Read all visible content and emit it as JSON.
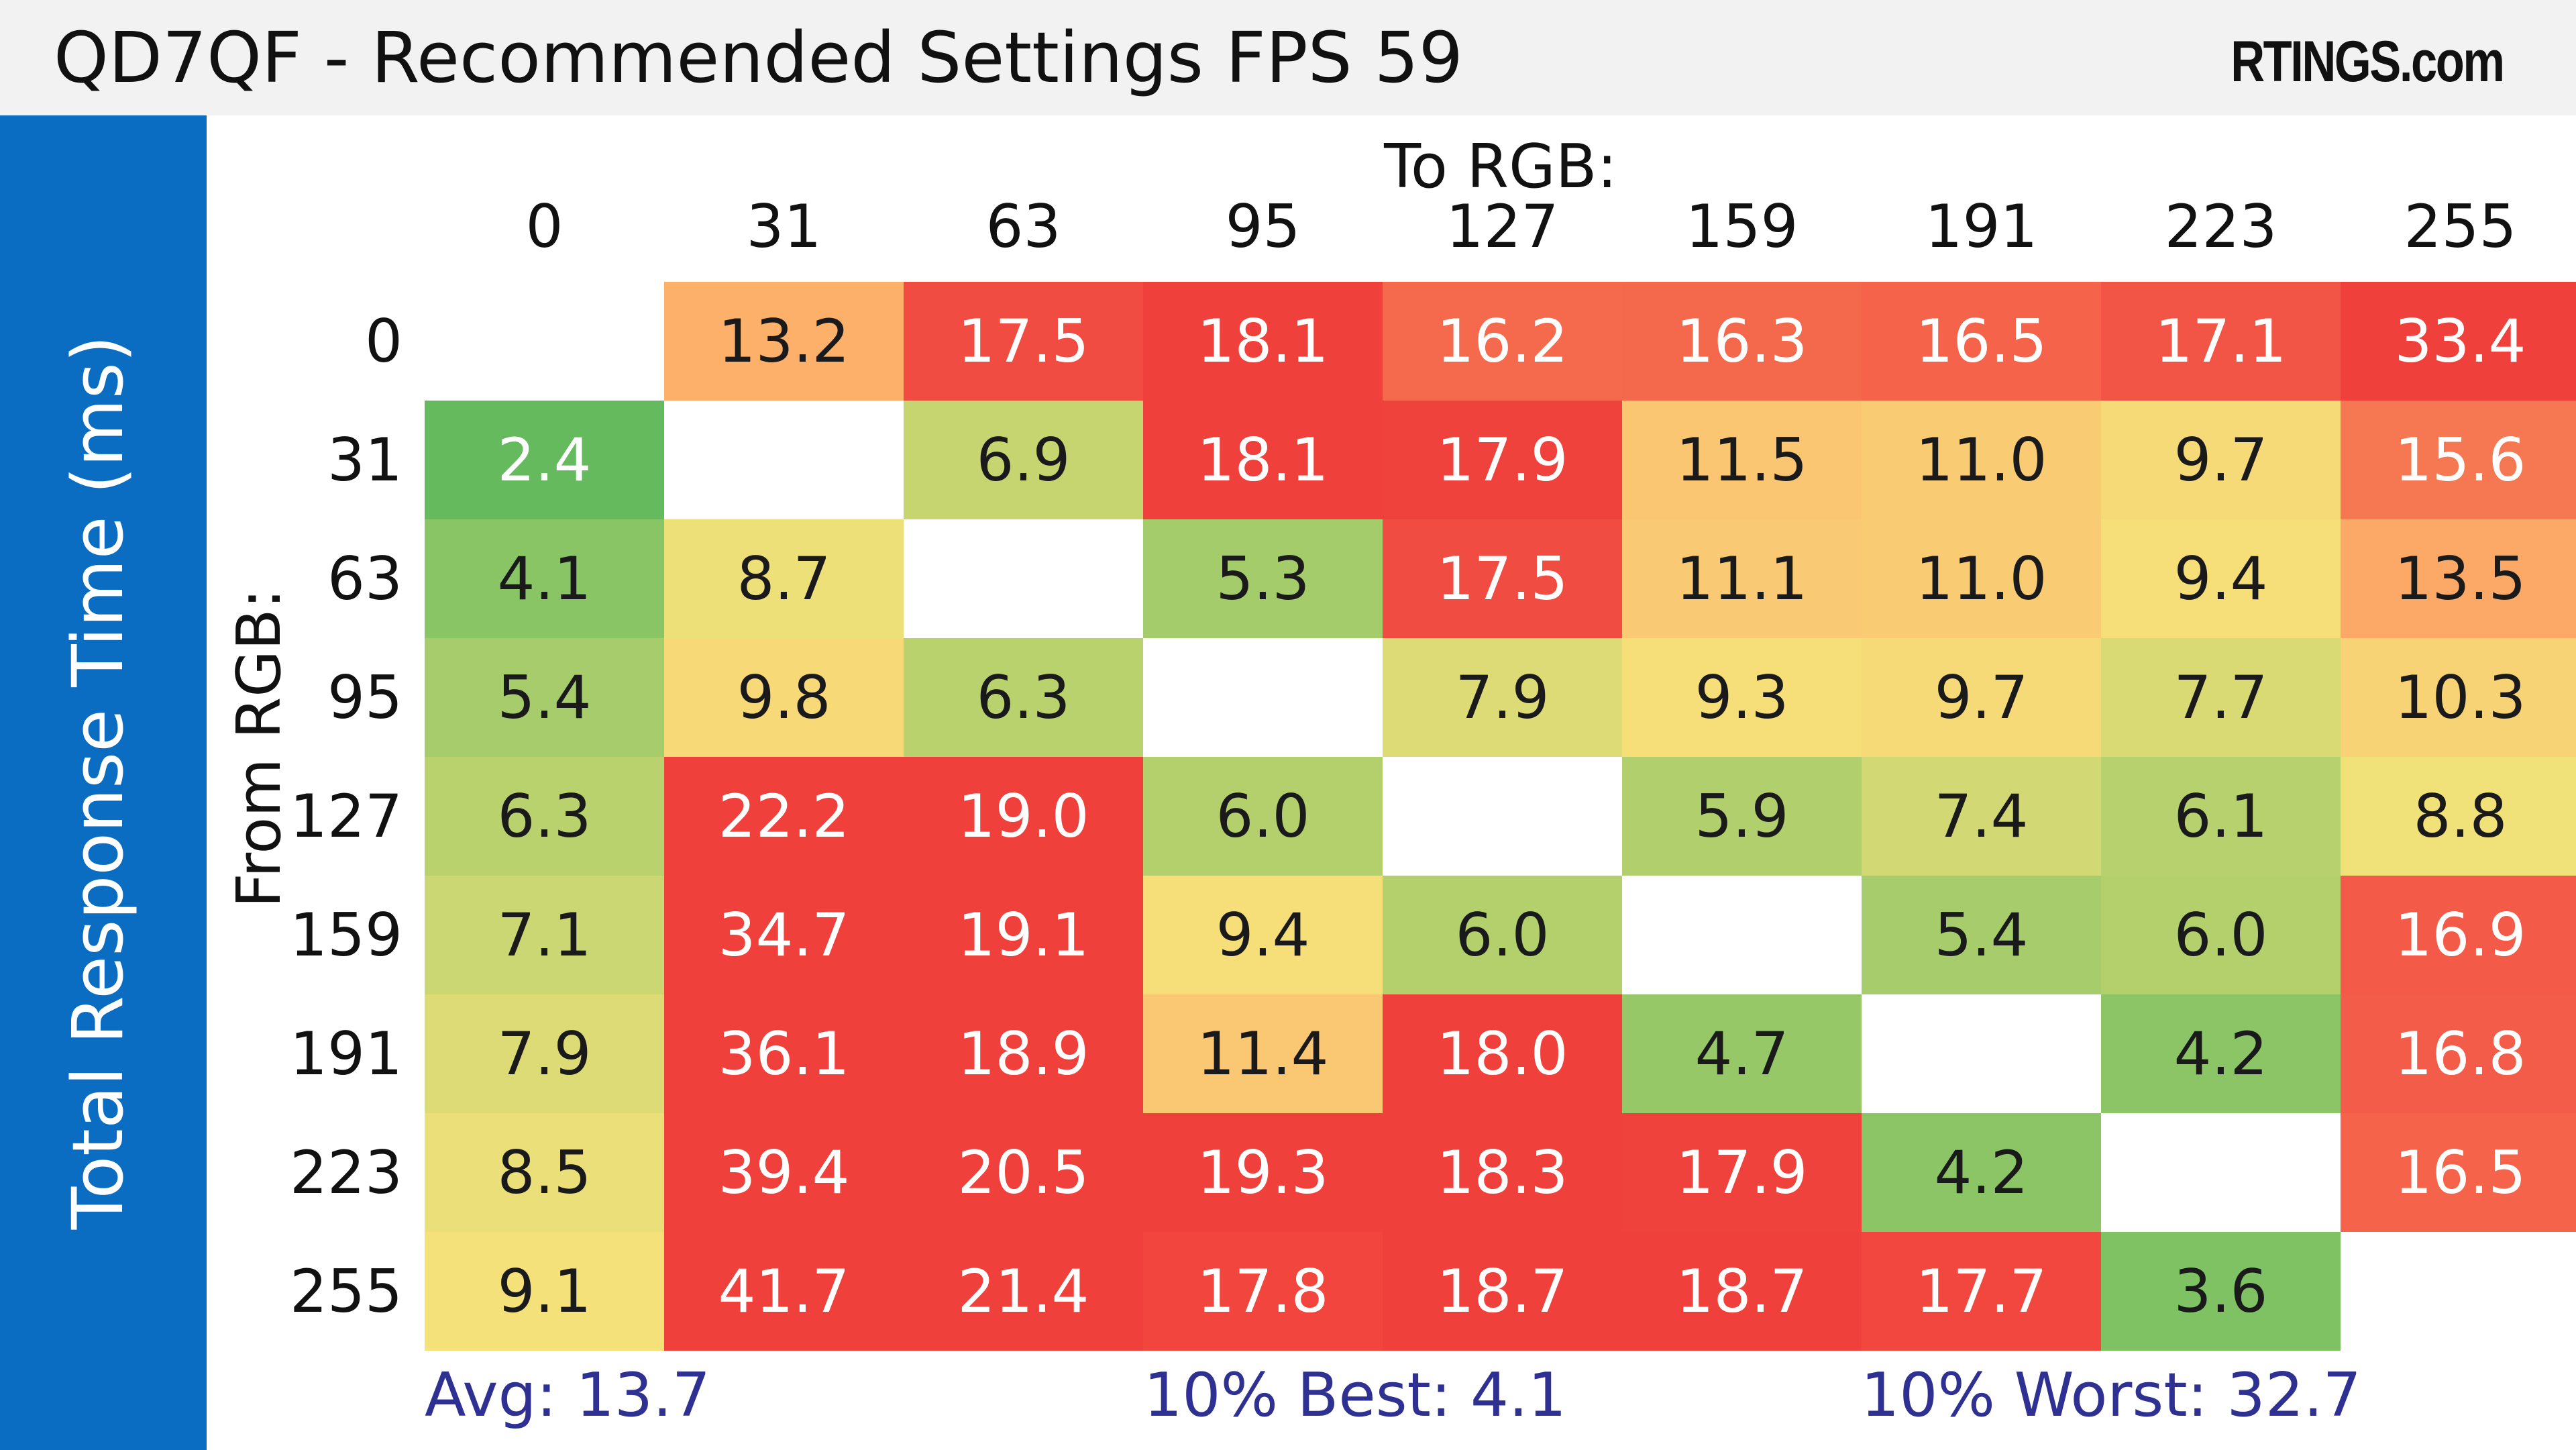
{
  "header": {
    "title": "QD7QF - Recommended Settings FPS 59",
    "brand": "RTINGS.com"
  },
  "sidebar": {
    "label": "Total Response Time (ms)"
  },
  "chart_data": {
    "type": "heatmap",
    "title": "QD7QF - Recommended Settings FPS 59",
    "xlabel": "To RGB:",
    "ylabel": "From RGB:",
    "x_categories": [
      "0",
      "31",
      "63",
      "95",
      "127",
      "159",
      "191",
      "223",
      "255"
    ],
    "y_categories": [
      "0",
      "31",
      "63",
      "95",
      "127",
      "159",
      "191",
      "223",
      "255"
    ],
    "values": [
      [
        null,
        13.2,
        17.5,
        18.1,
        16.2,
        16.3,
        16.5,
        17.1,
        33.4
      ],
      [
        2.4,
        null,
        6.9,
        18.1,
        17.9,
        11.5,
        11.0,
        9.7,
        15.6
      ],
      [
        4.1,
        8.7,
        null,
        5.3,
        17.5,
        11.1,
        11.0,
        9.4,
        13.5
      ],
      [
        5.4,
        9.8,
        6.3,
        null,
        7.9,
        9.3,
        9.7,
        7.7,
        10.3
      ],
      [
        6.3,
        22.2,
        19.0,
        6.0,
        null,
        5.9,
        7.4,
        6.1,
        8.8
      ],
      [
        7.1,
        34.7,
        19.1,
        9.4,
        6.0,
        null,
        5.4,
        6.0,
        16.9
      ],
      [
        7.9,
        36.1,
        18.9,
        11.4,
        18.0,
        4.7,
        null,
        4.2,
        16.8
      ],
      [
        8.5,
        39.4,
        20.5,
        19.3,
        18.3,
        17.9,
        4.2,
        null,
        16.5
      ],
      [
        9.1,
        41.7,
        21.4,
        17.8,
        18.7,
        18.7,
        17.7,
        3.6,
        null
      ]
    ],
    "unit": "ms"
  },
  "stats": {
    "avg": "Avg: 13.7",
    "best": "10% Best: 4.1",
    "worst": "10% Worst: 32.7"
  },
  "colors": {
    "side_band": "#0a6dc2",
    "stat_text": "#2e3192",
    "scale_green": "#5cb85c",
    "scale_yellow": "#f5e27a",
    "scale_orange": "#fdb56c",
    "scale_red": "#f0403c"
  }
}
